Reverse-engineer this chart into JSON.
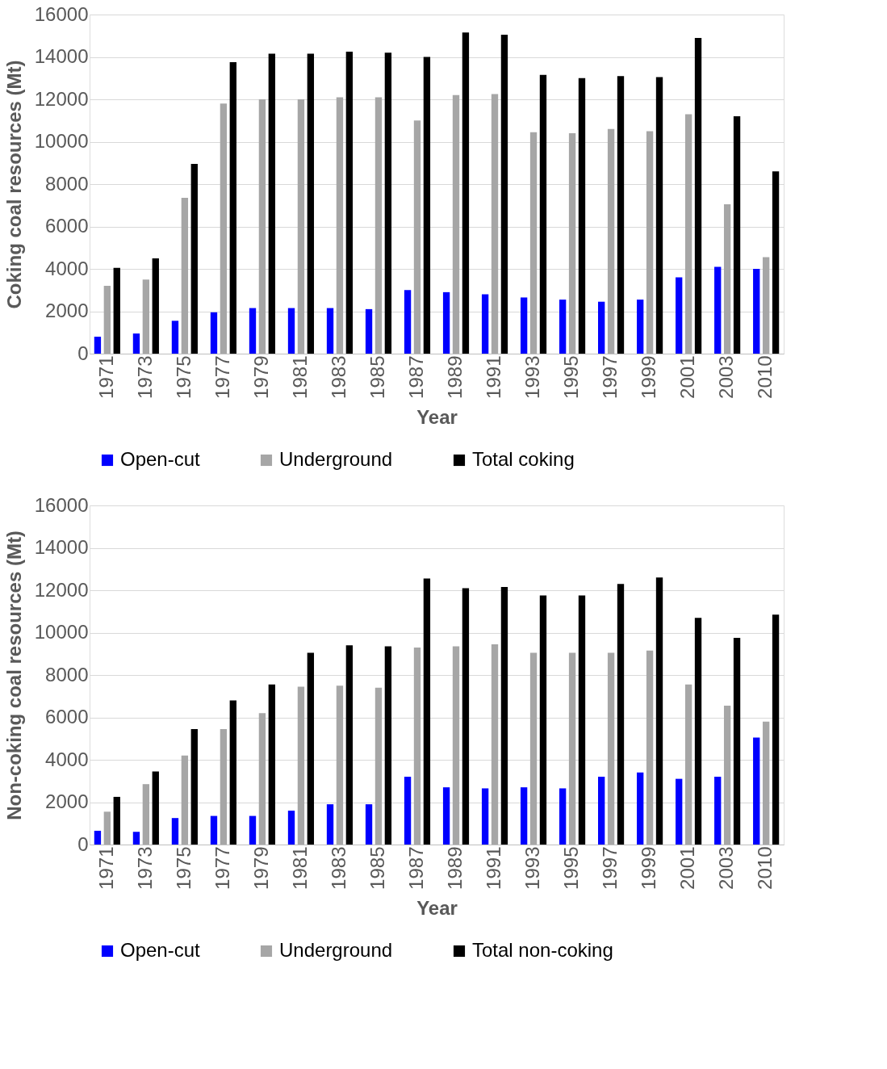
{
  "chart_data": [
    {
      "type": "bar",
      "xlabel": "Year",
      "ylabel": "Coking coal resources (Mt)",
      "categories": [
        "1971",
        "1973",
        "1975",
        "1977",
        "1979",
        "1981",
        "1983",
        "1985",
        "1987",
        "1989",
        "1991",
        "1993",
        "1995",
        "1997",
        "1999",
        "2001",
        "2003",
        "2010"
      ],
      "series": [
        {
          "name": "Open-cut",
          "color": "#0000ff",
          "values": [
            800,
            950,
            1550,
            1950,
            2150,
            2150,
            2150,
            2100,
            3000,
            2900,
            2800,
            2650,
            2550,
            2450,
            2550,
            3600,
            4100,
            4000
          ]
        },
        {
          "name": "Underground",
          "color": "#a6a6a6",
          "values": [
            3200,
            3500,
            7350,
            11800,
            12000,
            12000,
            12100,
            12100,
            11000,
            12200,
            12250,
            10450,
            10400,
            10600,
            10500,
            11300,
            7050,
            4550
          ]
        },
        {
          "name": "Total coking",
          "color": "#000000",
          "values": [
            4050,
            4500,
            8950,
            13750,
            14150,
            14150,
            14250,
            14200,
            14000,
            15150,
            15050,
            13150,
            13000,
            13100,
            13050,
            14900,
            11200,
            8600
          ]
        }
      ],
      "ylim": [
        0,
        16000
      ],
      "yticks": [
        0,
        2000,
        4000,
        6000,
        8000,
        10000,
        12000,
        14000,
        16000
      ],
      "grid": "y",
      "legend": "bottom"
    },
    {
      "type": "bar",
      "xlabel": "Year",
      "ylabel": "Non-coking coal resources (Mt)",
      "categories": [
        "1971",
        "1973",
        "1975",
        "1977",
        "1979",
        "1981",
        "1983",
        "1985",
        "1987",
        "1989",
        "1991",
        "1993",
        "1995",
        "1997",
        "1999",
        "2001",
        "2003",
        "2010"
      ],
      "series": [
        {
          "name": "Open-cut",
          "color": "#0000ff",
          "values": [
            650,
            600,
            1250,
            1350,
            1350,
            1600,
            1900,
            1900,
            3200,
            2700,
            2650,
            2700,
            2650,
            3200,
            3400,
            3100,
            3200,
            5050
          ]
        },
        {
          "name": "Underground",
          "color": "#a6a6a6",
          "values": [
            1550,
            2850,
            4200,
            5450,
            6200,
            7450,
            7500,
            7400,
            9300,
            9350,
            9450,
            9050,
            9050,
            9050,
            9150,
            7550,
            6550,
            5800
          ]
        },
        {
          "name": "Total non-coking",
          "color": "#000000",
          "values": [
            2250,
            3450,
            5450,
            6800,
            7550,
            9050,
            9400,
            9350,
            12550,
            12100,
            12150,
            11750,
            11750,
            12300,
            12600,
            10700,
            9750,
            10850
          ]
        }
      ],
      "ylim": [
        0,
        16000
      ],
      "yticks": [
        0,
        2000,
        4000,
        6000,
        8000,
        10000,
        12000,
        14000,
        16000
      ],
      "grid": "y",
      "legend": "bottom"
    }
  ]
}
